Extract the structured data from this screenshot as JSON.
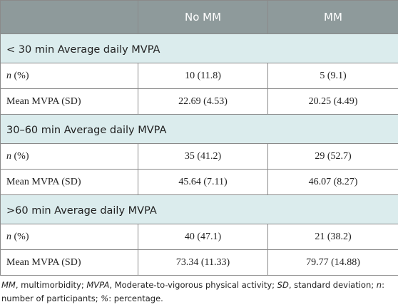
{
  "table": {
    "header": [
      "No MM",
      "MM"
    ],
    "sections": [
      {
        "title": "< 30 min Average daily MVPA",
        "rows": [
          {
            "label": [
              "n",
              "(%)"
            ],
            "values": [
              "10 (11.8)",
              "5 (9.1)"
            ]
          },
          {
            "label": [
              "Mean MVPA (SD)"
            ],
            "values": [
              "22.69 (4.53)",
              "20.25 (4.49)"
            ]
          }
        ]
      },
      {
        "title": "30–60 min Average daily MVPA",
        "rows": [
          {
            "label": [
              "n",
              "(%)"
            ],
            "values": [
              "35 (41.2)",
              "29 (52.7)"
            ]
          },
          {
            "label": [
              "Mean MVPA (SD)"
            ],
            "values": [
              "45.64 (7.11)",
              "46.07 (8.27)"
            ]
          }
        ]
      },
      {
        "title": ">60 min Average daily MVPA",
        "rows": [
          {
            "label": [
              "n",
              "(%)"
            ],
            "values": [
              "40 (47.1)",
              "21 (38.2)"
            ]
          },
          {
            "label": [
              "Mean MVPA (SD)"
            ],
            "values": [
              "73.34 (11.33)",
              "79.77 (14.88)"
            ]
          }
        ]
      }
    ],
    "footnote": [
      {
        "term": "MM",
        "def": ", multimorbidity;"
      },
      {
        "term": "MVPA",
        "def": ", Moderate-to-vigorous physical activity;"
      },
      {
        "term": "SD",
        "def": ", standard deviation;"
      },
      {
        "term": "n",
        "def": ": number of participants;"
      },
      {
        "term": "%",
        "def": ": percentage."
      }
    ]
  }
}
